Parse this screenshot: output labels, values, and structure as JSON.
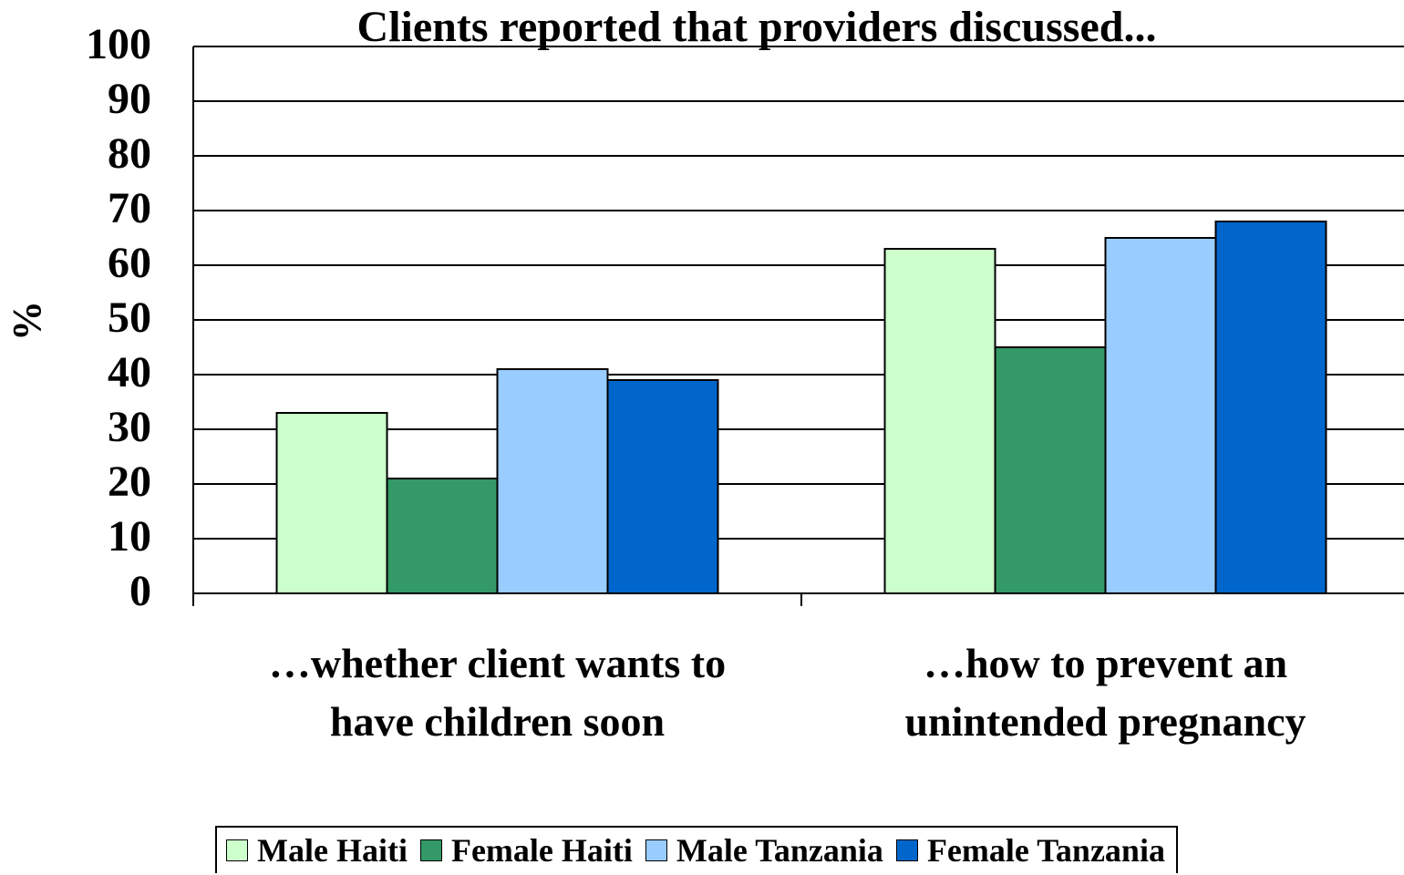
{
  "chart_data": {
    "type": "bar",
    "title": "Clients reported that providers discussed...",
    "y_label": "%",
    "categories": [
      "…whether client wants to have children soon",
      "…how to prevent an unintended pregnancy"
    ],
    "series": [
      {
        "name": "Male Haiti",
        "color": "#ccffcc",
        "values": [
          33,
          63
        ]
      },
      {
        "name": "Female Haiti",
        "color": "#339966",
        "values": [
          21,
          45
        ]
      },
      {
        "name": "Male Tanzania",
        "color": "#99ccff",
        "values": [
          41,
          65
        ]
      },
      {
        "name": "Female Tanzania",
        "color": "#0066cc",
        "values": [
          39,
          68
        ]
      }
    ],
    "ylim": [
      0,
      100
    ],
    "yticks": [
      0,
      10,
      20,
      30,
      40,
      50,
      60,
      70,
      80,
      90,
      100
    ],
    "grid": true,
    "legend": "bottom"
  }
}
